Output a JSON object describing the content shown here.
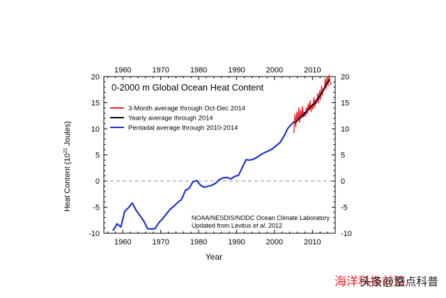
{
  "chart_data": {
    "type": "line",
    "title": "0-2000 m Global Ocean Heat Content",
    "xlabel": "Year",
    "ylabel": "Heat Content (10",
    "ylabel_sup": "22",
    "ylabel_tail": " Joules)",
    "xlim": [
      1955,
      2016
    ],
    "ylim": [
      -10,
      20
    ],
    "x_ticks": [
      1960,
      1970,
      1980,
      1990,
      2000,
      2010
    ],
    "y_ticks": [
      -10,
      -5,
      0,
      5,
      10,
      15,
      20
    ],
    "zero_line": true,
    "legend_position": "top-left",
    "credit": {
      "line1": "NOAA/NESDIS/NODC Ocean Climate Laboratory",
      "line2_prefix": "Updated from Levitus ",
      "line2_italic": "et al.",
      "line2_suffix": " 2012"
    },
    "series": [
      {
        "name": "3-Month average through Oct-Dec 2014",
        "color": "#e8232a",
        "x": [
          2005.1,
          2005.4,
          2005.6,
          2005.9,
          2006.1,
          2006.4,
          2006.6,
          2006.9,
          2007.1,
          2007.4,
          2007.6,
          2007.9,
          2008.1,
          2008.4,
          2008.6,
          2008.9,
          2009.1,
          2009.4,
          2009.6,
          2009.9,
          2010.1,
          2010.4,
          2010.6,
          2010.9,
          2011.1,
          2011.4,
          2011.6,
          2011.9,
          2012.1,
          2012.4,
          2012.6,
          2012.9,
          2013.1,
          2013.4,
          2013.6,
          2013.9,
          2014.1,
          2014.4,
          2014.6,
          2014.9
        ],
        "y": [
          9.3,
          12.8,
          10.4,
          13.2,
          11.5,
          14.0,
          11.2,
          13.6,
          12.0,
          14.3,
          12.2,
          13.0,
          12.4,
          14.1,
          12.8,
          14.8,
          13.5,
          15.4,
          13.3,
          14.6,
          13.8,
          16.0,
          14.1,
          15.3,
          14.9,
          16.8,
          15.0,
          17.3,
          15.6,
          18.2,
          16.4,
          17.8,
          17.4,
          19.6,
          17.6,
          20.0,
          18.2,
          20.3,
          19.0,
          18.5
        ]
      },
      {
        "name": "Yearly average through 2014",
        "color": "#000000",
        "x": [
          2005.5,
          2006.5,
          2007.5,
          2008.5,
          2009.5,
          2010.5,
          2011.5,
          2012.5,
          2013.5,
          2014.5
        ],
        "y": [
          11.2,
          11.9,
          12.6,
          13.3,
          14.2,
          14.8,
          15.8,
          16.9,
          18.3,
          19.4
        ]
      },
      {
        "name": "Pentadal average through 2010-2014",
        "color": "#1f2fd0",
        "x": [
          1957.5,
          1958.5,
          1959.5,
          1960.5,
          1961.5,
          1962.5,
          1963.5,
          1964.5,
          1965.5,
          1966.5,
          1967.5,
          1968.5,
          1969.5,
          1970.5,
          1971.5,
          1972.5,
          1973.5,
          1974.5,
          1975.5,
          1976.5,
          1977.5,
          1978.5,
          1979.5,
          1980.5,
          1981.5,
          1982.5,
          1983.5,
          1984.5,
          1985.5,
          1986.5,
          1987.5,
          1988.5,
          1989.5,
          1990.5,
          1991.5,
          1992.5,
          1993.5,
          1994.5,
          1995.5,
          1996.5,
          1997.5,
          1998.5,
          1999.5,
          2000.5,
          2001.5,
          2002.5,
          2003.5,
          2004.5,
          2005.5,
          2006.5,
          2007.5,
          2008.5,
          2009.5,
          2010.5,
          2011.5,
          2012.5
        ],
        "y": [
          -9.4,
          -8.2,
          -8.8,
          -5.8,
          -5.1,
          -4.2,
          -5.6,
          -6.6,
          -7.6,
          -9.1,
          -9.2,
          -9.1,
          -8.0,
          -7.2,
          -6.3,
          -5.4,
          -4.8,
          -4.1,
          -3.5,
          -1.8,
          -1.4,
          -0.1,
          0.1,
          -0.8,
          -1.2,
          -1.0,
          -0.8,
          -0.4,
          0.3,
          0.6,
          0.7,
          0.4,
          0.9,
          1.1,
          2.6,
          4.1,
          4.0,
          4.2,
          4.6,
          5.1,
          5.5,
          5.8,
          6.2,
          6.8,
          7.4,
          8.6,
          10.1,
          10.9,
          11.6,
          12.3,
          12.9,
          13.4,
          14.2,
          15.0,
          15.9,
          17.1
        ]
      }
    ]
  },
  "watermark": "海洋科技前沿",
  "attribution": "头条@整点科普"
}
